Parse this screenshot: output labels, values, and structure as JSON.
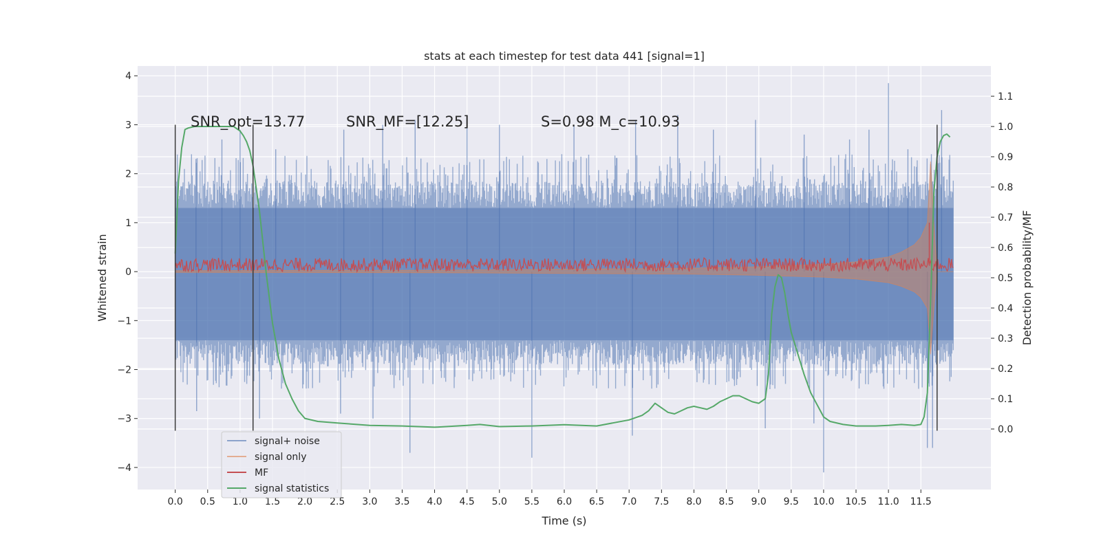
{
  "chart_data": {
    "type": "line",
    "title": "stats at each timestep for test data 441 [signal=1]",
    "xlabel": "Time (s)",
    "ylabel": "Whitened strain",
    "y2label": "Detection probability/MF",
    "xlim": [
      -0.58,
      12.58
    ],
    "ylim": [
      -4.45,
      4.2
    ],
    "y2lim": [
      -0.2,
      1.2
    ],
    "grid": true,
    "legend_position": "lower-left",
    "x_ticks": [
      0.0,
      0.5,
      1.0,
      1.5,
      2.0,
      2.5,
      3.0,
      3.5,
      4.0,
      4.5,
      5.0,
      5.5,
      6.0,
      6.5,
      7.0,
      7.5,
      8.0,
      8.5,
      9.0,
      9.5,
      10.0,
      10.5,
      11.0,
      11.5
    ],
    "x_tick_labels": [
      "0.0",
      "0.5",
      "1.0",
      "1.5",
      "2.0",
      "2.5",
      "3.0",
      "3.5",
      "4.0",
      "4.5",
      "5.0",
      "5.5",
      "6.0",
      "6.5",
      "7.0",
      "7.5",
      "8.0",
      "8.5",
      "9.0",
      "9.5",
      "10.0",
      "10.5",
      "11.0",
      "11.5"
    ],
    "y_ticks": [
      -4,
      -3,
      -2,
      -1,
      0,
      1,
      2,
      3,
      4
    ],
    "y_tick_labels": [
      "−4",
      "−3",
      "−2",
      "−1",
      "0",
      "1",
      "2",
      "3",
      "4"
    ],
    "y2_ticks": [
      0.0,
      0.1,
      0.2,
      0.3,
      0.4,
      0.5,
      0.6,
      0.7,
      0.8,
      0.9,
      1.0,
      1.1
    ],
    "y2_tick_labels": [
      "0.0",
      "0.1",
      "0.2",
      "0.3",
      "0.4",
      "0.5",
      "0.6",
      "0.7",
      "0.8",
      "0.9",
      "1.0",
      "1.1"
    ],
    "annotations": [
      {
        "id": "snr_opt",
        "text": "SNR_opt=13.77",
        "x": 0.2,
        "y": 3.0
      },
      {
        "id": "snr_mf",
        "text": "SNR_MF=[12.25]",
        "x": 2.6,
        "y": 3.0
      },
      {
        "id": "s_mc",
        "text": "S=0.98   M_c=10.93",
        "x": 5.6,
        "y": 3.0
      }
    ],
    "vertical_lines": [
      {
        "x": 0.0,
        "ymin": -3.25,
        "ymax": 3.0
      },
      {
        "x": 1.2,
        "ymin": -3.25,
        "ymax": 3.0
      },
      {
        "x": 11.75,
        "ymin": -3.25,
        "ymax": 3.0
      }
    ],
    "series": [
      {
        "name": "signal+ noise",
        "color": "#4c72b0",
        "axis": "left",
        "style": "dense noise band",
        "typical_band": [
          -1.4,
          1.3
        ],
        "x_range": [
          0.0,
          12.0
        ],
        "peaks": [
          {
            "x": 0.32,
            "y": 2.3
          },
          {
            "x": 0.33,
            "y": -2.85
          },
          {
            "x": 0.72,
            "y": 2.7
          },
          {
            "x": 1.0,
            "y": 2.9
          },
          {
            "x": 1.3,
            "y": -3.0
          },
          {
            "x": 1.55,
            "y": 2.5
          },
          {
            "x": 2.55,
            "y": -2.9
          },
          {
            "x": 2.6,
            "y": 2.9
          },
          {
            "x": 3.05,
            "y": -3.0
          },
          {
            "x": 3.2,
            "y": 3.0
          },
          {
            "x": 3.62,
            "y": -3.7
          },
          {
            "x": 3.7,
            "y": 3.1
          },
          {
            "x": 4.5,
            "y": 3.2
          },
          {
            "x": 5.0,
            "y": 3.0
          },
          {
            "x": 5.5,
            "y": -3.8
          },
          {
            "x": 6.15,
            "y": 3.0
          },
          {
            "x": 7.05,
            "y": -3.35
          },
          {
            "x": 7.1,
            "y": 3.1
          },
          {
            "x": 7.75,
            "y": 3.2
          },
          {
            "x": 8.3,
            "y": 2.9
          },
          {
            "x": 8.95,
            "y": 3.1
          },
          {
            "x": 9.1,
            "y": -3.2
          },
          {
            "x": 9.7,
            "y": 2.8
          },
          {
            "x": 9.85,
            "y": -3.1
          },
          {
            "x": 10.0,
            "y": -4.1
          },
          {
            "x": 10.4,
            "y": 2.7
          },
          {
            "x": 10.7,
            "y": 2.9
          },
          {
            "x": 11.0,
            "y": 3.85
          },
          {
            "x": 11.3,
            "y": 2.5
          },
          {
            "x": 11.6,
            "y": -3.6
          },
          {
            "x": 11.68,
            "y": -3.6
          },
          {
            "x": 11.82,
            "y": 3.3
          }
        ]
      },
      {
        "name": "signal only",
        "color": "#dd8452",
        "axis": "left",
        "style": "chirp envelope",
        "envelope_x": [
          0.0,
          4.0,
          8.0,
          9.0,
          10.0,
          10.5,
          11.0,
          11.2,
          11.4,
          11.5,
          11.6,
          11.65,
          11.7,
          11.75,
          12.0
        ],
        "envelope_amp": [
          0.02,
          0.03,
          0.07,
          0.1,
          0.15,
          0.2,
          0.3,
          0.4,
          0.55,
          0.7,
          1.0,
          2.25,
          1.0,
          0.0,
          0.0
        ]
      },
      {
        "name": "MF",
        "color": "#c44e52",
        "axis": "left",
        "style": "noisy band",
        "center": 0.12,
        "band": [
          0.0,
          0.28
        ],
        "x_range": [
          0.0,
          12.0
        ],
        "spikes": [
          {
            "x": 11.63,
            "y": 1.0
          }
        ]
      },
      {
        "name": "signal statistics",
        "color": "#55a868",
        "axis": "right",
        "x": [
          0.0,
          0.05,
          0.1,
          0.15,
          0.2,
          0.3,
          0.4,
          0.5,
          0.6,
          0.7,
          0.8,
          0.9,
          1.0,
          1.05,
          1.1,
          1.15,
          1.2,
          1.3,
          1.4,
          1.5,
          1.6,
          1.7,
          1.8,
          1.9,
          2.0,
          2.2,
          2.5,
          2.8,
          3.0,
          3.5,
          4.0,
          4.5,
          4.7,
          5.0,
          5.5,
          6.0,
          6.5,
          7.0,
          7.2,
          7.3,
          7.4,
          7.5,
          7.6,
          7.7,
          7.8,
          7.9,
          8.0,
          8.1,
          8.2,
          8.3,
          8.4,
          8.5,
          8.6,
          8.7,
          8.8,
          8.9,
          9.0,
          9.1,
          9.15,
          9.2,
          9.25,
          9.3,
          9.35,
          9.4,
          9.45,
          9.5,
          9.6,
          9.7,
          9.8,
          9.9,
          10.0,
          10.1,
          10.3,
          10.5,
          10.8,
          11.0,
          11.2,
          11.4,
          11.5,
          11.55,
          11.6,
          11.65,
          11.7,
          11.75,
          11.8,
          11.85,
          11.9,
          11.95
        ],
        "values": [
          0.58,
          0.82,
          0.93,
          0.99,
          0.995,
          1.0,
          1.0,
          1.0,
          1.0,
          1.0,
          1.0,
          1.0,
          0.985,
          0.97,
          0.95,
          0.92,
          0.87,
          0.72,
          0.52,
          0.35,
          0.23,
          0.15,
          0.1,
          0.06,
          0.035,
          0.025,
          0.02,
          0.015,
          0.012,
          0.01,
          0.006,
          0.012,
          0.015,
          0.008,
          0.01,
          0.014,
          0.01,
          0.03,
          0.045,
          0.06,
          0.085,
          0.07,
          0.055,
          0.05,
          0.06,
          0.07,
          0.075,
          0.07,
          0.065,
          0.075,
          0.09,
          0.1,
          0.11,
          0.11,
          0.1,
          0.09,
          0.085,
          0.1,
          0.18,
          0.38,
          0.47,
          0.51,
          0.5,
          0.45,
          0.38,
          0.32,
          0.25,
          0.18,
          0.12,
          0.08,
          0.04,
          0.025,
          0.015,
          0.01,
          0.01,
          0.012,
          0.015,
          0.012,
          0.015,
          0.04,
          0.12,
          0.42,
          0.78,
          0.9,
          0.95,
          0.97,
          0.975,
          0.965
        ]
      }
    ]
  }
}
